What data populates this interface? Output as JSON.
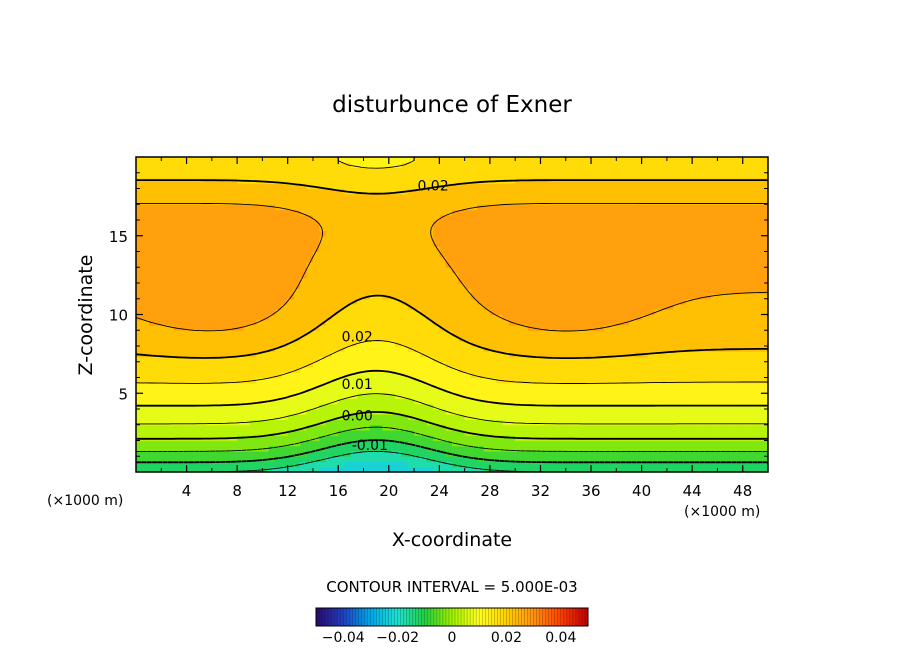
{
  "chart_data": {
    "type": "heatmap",
    "subtype": "filled-contour",
    "title": "disturbunce of Exner",
    "xlabel": "X-coordinate",
    "ylabel": "Z-coordinate",
    "x_unit_label_left": "(×1000 m)",
    "x_unit_label_right": "(×1000 m)",
    "xlim": [
      0,
      50
    ],
    "ylim": [
      0,
      20
    ],
    "x_ticks": [
      4,
      8,
      12,
      16,
      20,
      24,
      28,
      32,
      36,
      40,
      44,
      48
    ],
    "x_tick_labels": [
      "4",
      "8",
      "12",
      "16",
      "20",
      "24",
      "28",
      "32",
      "36",
      "40",
      "44",
      "48"
    ],
    "y_ticks": [
      5,
      10,
      15
    ],
    "y_tick_labels": [
      "5",
      "10",
      "15"
    ],
    "contour_interval_text": "CONTOUR INTERVAL = 5.000E-03",
    "contour_interval": 0.005,
    "contour_labels": [
      {
        "text": "0.02",
        "x": 23.5,
        "z": 18.2
      },
      {
        "text": "0.02",
        "x": 17.5,
        "z": 8.6
      },
      {
        "text": "0.01",
        "x": 17.5,
        "z": 5.6
      },
      {
        "text": "0.00",
        "x": 17.5,
        "z": 3.6
      },
      {
        "text": "-0.01",
        "x": 18.5,
        "z": 1.7
      }
    ],
    "field_summary": {
      "max_value_approx": 0.03,
      "max_locations": [
        {
          "x": 6,
          "z": 10.5
        },
        {
          "x": 34,
          "z": 10.5
        }
      ],
      "min_value_approx": -0.015,
      "min_location": {
        "x": 19,
        "z": 0
      }
    },
    "colorbar": {
      "range": [
        -0.05,
        0.05
      ],
      "tick_values": [
        -0.04,
        -0.02,
        0,
        0.02,
        0.04
      ],
      "tick_labels": [
        "−0.04",
        "−0.02",
        "0",
        "0.02",
        "0.04"
      ],
      "colormap": [
        "#2a0a6e",
        "#2040c0",
        "#00a8e8",
        "#20e0d0",
        "#20d040",
        "#a0f000",
        "#ffff20",
        "#ffd000",
        "#ff9010",
        "#ff4000",
        "#c00000"
      ]
    }
  }
}
